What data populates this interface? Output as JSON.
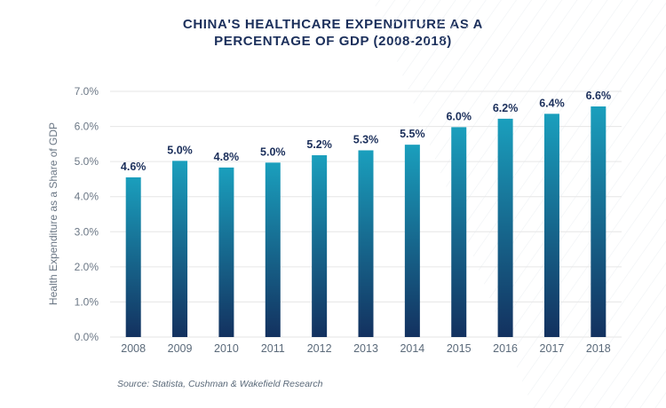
{
  "chart_data": {
    "type": "bar",
    "title_lines": [
      "CHINA'S HEALTHCARE EXPENDITURE AS A",
      "PERCENTAGE OF GDP (2008-2018)"
    ],
    "ylabel": "Health Expenditure as a Share of GDP",
    "xlabel": "",
    "categories": [
      "2008",
      "2009",
      "2010",
      "2011",
      "2012",
      "2013",
      "2014",
      "2015",
      "2016",
      "2017",
      "2018"
    ],
    "values": [
      4.55,
      5.02,
      4.83,
      4.97,
      5.18,
      5.32,
      5.48,
      5.98,
      6.22,
      6.36,
      6.57
    ],
    "data_labels": [
      "4.6%",
      "5.0%",
      "4.8%",
      "5.0%",
      "5.2%",
      "5.3%",
      "5.5%",
      "6.0%",
      "6.2%",
      "6.4%",
      "6.6%"
    ],
    "ylim": [
      0,
      7
    ],
    "yticks": [
      0,
      1,
      2,
      3,
      4,
      5,
      6,
      7
    ],
    "ytick_labels": [
      "0.0%",
      "1.0%",
      "2.0%",
      "3.0%",
      "4.0%",
      "5.0%",
      "6.0%",
      "7.0%"
    ],
    "grid": true,
    "colors": {
      "bar_top": "#1a9fbd",
      "bar_bottom": "#13315f",
      "label": "#1b2f5b",
      "grid": "#e6e6e6"
    }
  },
  "source": "Source: Statista, Cushman & Wakefield Research"
}
